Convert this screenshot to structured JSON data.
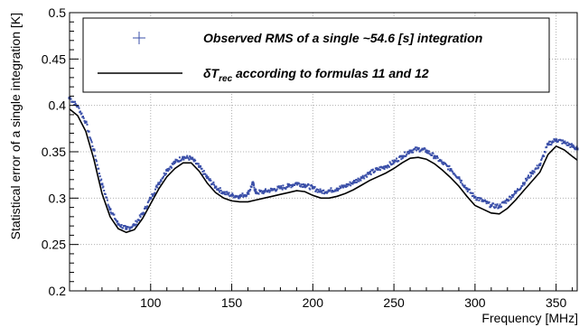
{
  "chart_data": {
    "type": "scatter",
    "title": "",
    "xlabel": "Frequency [MHz]",
    "ylabel": "Statistical error of a single integration [K]",
    "xlim": [
      50,
      363
    ],
    "ylim": [
      0.2,
      0.5
    ],
    "x_ticks": [
      100,
      150,
      200,
      250,
      300,
      350
    ],
    "y_ticks": [
      0.2,
      0.25,
      0.3,
      0.35,
      0.4,
      0.45,
      0.5
    ],
    "x_tick_labels": [
      "100",
      "150",
      "200",
      "250",
      "300",
      "350"
    ],
    "y_tick_labels": [
      "0.2",
      "0.25",
      "0.3",
      "0.35",
      "0.4",
      "0.45",
      "0.5"
    ],
    "legend": {
      "placement": "top",
      "entries": [
        {
          "label": "Observed RMS of a single ~54.6 [s] integration",
          "marker": "cross",
          "color": "#3a4fa8"
        },
        {
          "label_prefix": "δT",
          "label_sub": "rec",
          "label_suffix": " according to formulas 11 and 12",
          "marker": "line",
          "color": "#000000"
        }
      ]
    },
    "series": [
      {
        "name": "Observed RMS of a single ~54.6 [s] integration",
        "kind": "points",
        "color": "#3a4fa8",
        "x": [
          50,
          55,
          60,
          65,
          70,
          75,
          80,
          85,
          90,
          95,
          100,
          105,
          110,
          115,
          120,
          125,
          130,
          135,
          140,
          145,
          150,
          155,
          160,
          163,
          165,
          170,
          175,
          180,
          185,
          190,
          195,
          200,
          205,
          210,
          215,
          220,
          225,
          230,
          235,
          240,
          245,
          250,
          255,
          260,
          265,
          270,
          275,
          280,
          285,
          290,
          295,
          300,
          305,
          310,
          315,
          320,
          325,
          330,
          335,
          340,
          345,
          350,
          355,
          360,
          363
        ],
        "values": [
          0.408,
          0.399,
          0.382,
          0.352,
          0.315,
          0.288,
          0.272,
          0.267,
          0.271,
          0.283,
          0.3,
          0.316,
          0.33,
          0.339,
          0.344,
          0.343,
          0.334,
          0.322,
          0.312,
          0.306,
          0.303,
          0.302,
          0.305,
          0.316,
          0.306,
          0.307,
          0.309,
          0.311,
          0.313,
          0.316,
          0.314,
          0.311,
          0.307,
          0.308,
          0.31,
          0.313,
          0.317,
          0.322,
          0.327,
          0.331,
          0.334,
          0.339,
          0.345,
          0.351,
          0.353,
          0.351,
          0.345,
          0.338,
          0.331,
          0.322,
          0.31,
          0.301,
          0.297,
          0.292,
          0.291,
          0.298,
          0.306,
          0.316,
          0.327,
          0.336,
          0.358,
          0.363,
          0.36,
          0.356,
          0.353
        ]
      },
      {
        "name": "δTrec according to formulas 11 and 12",
        "kind": "line",
        "color": "#000000",
        "x": [
          50,
          55,
          60,
          65,
          70,
          75,
          80,
          85,
          90,
          95,
          100,
          105,
          110,
          115,
          120,
          125,
          130,
          135,
          140,
          145,
          150,
          155,
          160,
          165,
          170,
          175,
          180,
          185,
          190,
          195,
          200,
          205,
          210,
          215,
          220,
          225,
          230,
          235,
          240,
          245,
          250,
          255,
          260,
          265,
          270,
          275,
          280,
          285,
          290,
          295,
          300,
          305,
          310,
          315,
          320,
          325,
          330,
          335,
          340,
          345,
          350,
          355,
          360,
          363
        ],
        "values": [
          0.396,
          0.389,
          0.372,
          0.342,
          0.305,
          0.28,
          0.267,
          0.263,
          0.266,
          0.278,
          0.294,
          0.31,
          0.323,
          0.332,
          0.338,
          0.338,
          0.329,
          0.316,
          0.306,
          0.3,
          0.297,
          0.296,
          0.296,
          0.298,
          0.3,
          0.302,
          0.304,
          0.306,
          0.308,
          0.307,
          0.303,
          0.3,
          0.3,
          0.302,
          0.305,
          0.309,
          0.314,
          0.319,
          0.323,
          0.327,
          0.332,
          0.338,
          0.343,
          0.344,
          0.342,
          0.337,
          0.33,
          0.322,
          0.313,
          0.302,
          0.292,
          0.288,
          0.284,
          0.283,
          0.289,
          0.298,
          0.308,
          0.318,
          0.328,
          0.347,
          0.356,
          0.352,
          0.345,
          0.341
        ]
      }
    ]
  }
}
